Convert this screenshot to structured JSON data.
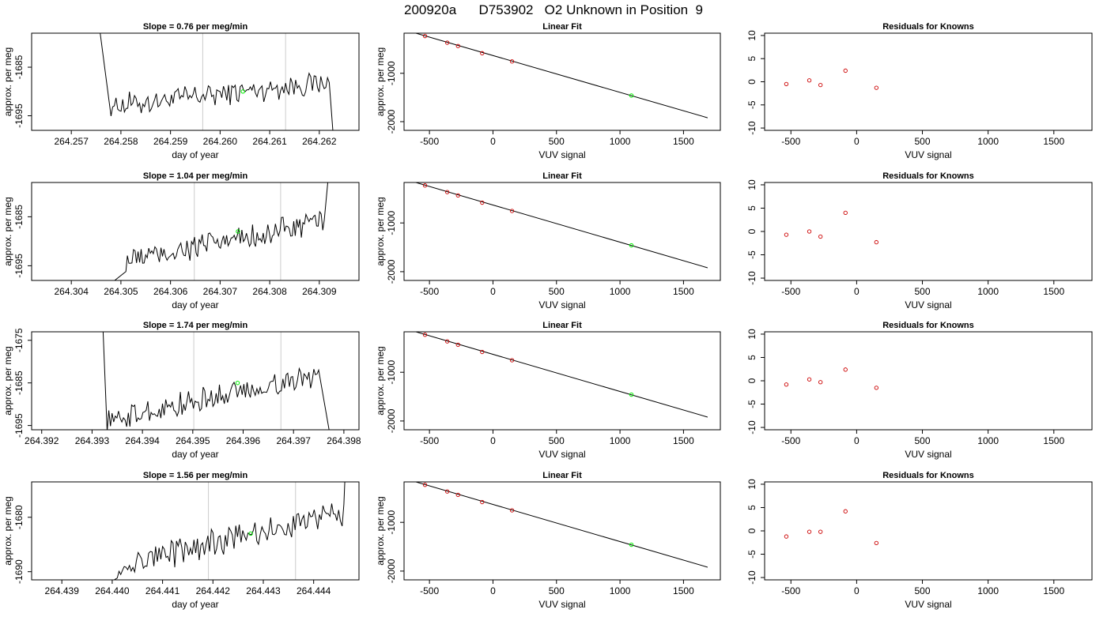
{
  "figure": {
    "title": "200920a      D753902   O2 Unknown in Position  9",
    "colors": {
      "line": "#000000",
      "known": "#cc0000",
      "unknown": "#00ee00",
      "window": "#cccccc"
    }
  },
  "chart_data": [
    {
      "id": "trace-1",
      "type": "line",
      "title": "Slope =  0.76  per meg/min",
      "xlabel": "day of year",
      "ylabel": "approx. per meg",
      "xlim": [
        264.2562,
        264.2628
      ],
      "ylim": [
        -1698,
        -1678
      ],
      "xticks": [
        264.257,
        264.258,
        264.259,
        264.26,
        264.261,
        264.262
      ],
      "xtick_labels": [
        "264.257",
        "264.258",
        "264.259",
        "264.260",
        "264.261",
        "264.262"
      ],
      "yticks": [
        -1695,
        -1685
      ],
      "ytick_labels": [
        "-1695",
        "-1685"
      ],
      "window_lines": [
        264.25965,
        264.26132
      ],
      "unknown_point": {
        "x": 264.26046,
        "y": -1690
      },
      "trace": {
        "start": 264.2578,
        "end": 264.2622,
        "base_start": -1693,
        "base_end": -1688,
        "amp": 1.5,
        "lead": [
          264.25757,
          -1677
        ],
        "tail": [
          264.26228,
          -1699
        ]
      }
    },
    {
      "id": "fit-1",
      "type": "scatter",
      "title": "Linear Fit",
      "xlabel": "VUV signal",
      "ylabel": "approx. per meg",
      "xlim": [
        -700,
        1790
      ],
      "ylim": [
        -2180,
        -170
      ],
      "xticks": [
        -500,
        0,
        500,
        1000,
        1500
      ],
      "xtick_labels": [
        "-500",
        "0",
        "500",
        "1000",
        "1500"
      ],
      "yticks": [
        -1000,
        -2000
      ],
      "ytick_labels": [
        "-1000",
        "-2000"
      ],
      "known_points": [
        {
          "x": -535,
          "y": -230
        },
        {
          "x": -360,
          "y": -367
        },
        {
          "x": -275,
          "y": -435
        },
        {
          "x": -85,
          "y": -584
        },
        {
          "x": 150,
          "y": -754
        }
      ],
      "unknown_point": {
        "x": 1090,
        "y": -1460
      },
      "fit_line": [
        [
          -620,
          -160
        ],
        [
          1690,
          -1920
        ]
      ]
    },
    {
      "id": "resid-1",
      "type": "scatter",
      "title": "Residuals for Knowns",
      "xlabel": "VUV signal",
      "ylabel": "",
      "xlim": [
        -700,
        1790
      ],
      "ylim": [
        -10.5,
        10.5
      ],
      "xticks": [
        -500,
        0,
        500,
        1000,
        1500
      ],
      "xtick_labels": [
        "-500",
        "0",
        "500",
        "1000",
        "1500"
      ],
      "yticks": [
        -10,
        -5,
        0,
        5,
        10
      ],
      "ytick_labels": [
        "-10",
        "-5",
        "0",
        "5",
        "10"
      ],
      "known_points": [
        {
          "x": -535,
          "y": -0.5
        },
        {
          "x": -360,
          "y": 0.3
        },
        {
          "x": -275,
          "y": -0.7
        },
        {
          "x": -85,
          "y": 2.4
        },
        {
          "x": 150,
          "y": -1.3
        }
      ]
    },
    {
      "id": "trace-2",
      "type": "line",
      "title": "Slope =  1.04  per meg/min",
      "xlabel": "day of year",
      "ylabel": "approx. per meg",
      "xlim": [
        264.3032,
        264.3098
      ],
      "ylim": [
        -1698,
        -1678
      ],
      "xticks": [
        264.304,
        264.305,
        264.306,
        264.307,
        264.308,
        264.309
      ],
      "xtick_labels": [
        "264.304",
        "264.305",
        "264.306",
        "264.307",
        "264.308",
        "264.309"
      ],
      "yticks": [
        -1695,
        -1685
      ],
      "ytick_labels": [
        "-1695",
        "-1685"
      ],
      "window_lines": [
        264.30648,
        264.30822
      ],
      "unknown_point": {
        "x": 264.30736,
        "y": -1688
      },
      "trace": {
        "start": 264.3051,
        "end": 264.3091,
        "base_start": -1694,
        "base_end": -1686,
        "amp": 1.6,
        "lead": [
          264.30475,
          -1699
        ],
        "tail": [
          264.30918,
          -1677
        ]
      }
    },
    {
      "id": "fit-2",
      "type": "scatter",
      "title": "Linear Fit",
      "xlabel": "VUV signal",
      "ylabel": "approx. per meg",
      "xlim": [
        -700,
        1790
      ],
      "ylim": [
        -2180,
        -170
      ],
      "xticks": [
        -500,
        0,
        500,
        1000,
        1500
      ],
      "xtick_labels": [
        "-500",
        "0",
        "500",
        "1000",
        "1500"
      ],
      "yticks": [
        -1000,
        -2000
      ],
      "ytick_labels": [
        "-1000",
        "-2000"
      ],
      "known_points": [
        {
          "x": -535,
          "y": -230
        },
        {
          "x": -360,
          "y": -367
        },
        {
          "x": -275,
          "y": -435
        },
        {
          "x": -85,
          "y": -584
        },
        {
          "x": 150,
          "y": -754
        }
      ],
      "unknown_point": {
        "x": 1090,
        "y": -1460
      },
      "fit_line": [
        [
          -620,
          -160
        ],
        [
          1690,
          -1920
        ]
      ]
    },
    {
      "id": "resid-2",
      "type": "scatter",
      "title": "Residuals for Knowns",
      "xlabel": "VUV signal",
      "ylabel": "",
      "xlim": [
        -700,
        1790
      ],
      "ylim": [
        -10.5,
        10.5
      ],
      "xticks": [
        -500,
        0,
        500,
        1000,
        1500
      ],
      "xtick_labels": [
        "-500",
        "0",
        "500",
        "1000",
        "1500"
      ],
      "yticks": [
        -10,
        -5,
        0,
        5,
        10
      ],
      "ytick_labels": [
        "-10",
        "-5",
        "0",
        "5",
        "10"
      ],
      "known_points": [
        {
          "x": -535,
          "y": -0.7
        },
        {
          "x": -360,
          "y": 0.0
        },
        {
          "x": -275,
          "y": -1.1
        },
        {
          "x": -85,
          "y": 4.0
        },
        {
          "x": 150,
          "y": -2.3
        }
      ]
    },
    {
      "id": "trace-3",
      "type": "line",
      "title": "Slope =  1.74  per meg/min",
      "xlabel": "day of year",
      "ylabel": "approx. per meg",
      "xlim": [
        264.3918,
        264.3983
      ],
      "ylim": [
        -1696,
        -1673
      ],
      "xticks": [
        264.392,
        264.393,
        264.394,
        264.395,
        264.396,
        264.397,
        264.398
      ],
      "xtick_labels": [
        "264.392",
        "264.393",
        "264.394",
        "264.395",
        "264.396",
        "264.397",
        "264.398"
      ],
      "yticks": [
        -1695,
        -1685,
        -1675
      ],
      "ytick_labels": [
        "-1695",
        "-1685",
        "-1675"
      ],
      "window_lines": [
        264.39502,
        264.39675
      ],
      "unknown_point": {
        "x": 264.39589,
        "y": -1685
      },
      "trace": {
        "start": 264.3933,
        "end": 264.3975,
        "base_start": -1694,
        "base_end": -1683,
        "amp": 1.8,
        "lead": [
          264.39322,
          -1673
        ],
        "tail": [
          264.39772,
          -1697
        ]
      }
    },
    {
      "id": "fit-3",
      "type": "scatter",
      "title": "Linear Fit",
      "xlabel": "VUV signal",
      "ylabel": "approx. per meg",
      "xlim": [
        -700,
        1790
      ],
      "ylim": [
        -2180,
        -170
      ],
      "xticks": [
        -500,
        0,
        500,
        1000,
        1500
      ],
      "xtick_labels": [
        "-500",
        "0",
        "500",
        "1000",
        "1500"
      ],
      "yticks": [
        -1000,
        -2000
      ],
      "ytick_labels": [
        "-1000",
        "-2000"
      ],
      "known_points": [
        {
          "x": -535,
          "y": -230
        },
        {
          "x": -360,
          "y": -367
        },
        {
          "x": -275,
          "y": -435
        },
        {
          "x": -85,
          "y": -584
        },
        {
          "x": 150,
          "y": -754
        }
      ],
      "unknown_point": {
        "x": 1090,
        "y": -1460
      },
      "fit_line": [
        [
          -620,
          -160
        ],
        [
          1690,
          -1920
        ]
      ]
    },
    {
      "id": "resid-3",
      "type": "scatter",
      "title": "Residuals for Knowns",
      "xlabel": "VUV signal",
      "ylabel": "",
      "xlim": [
        -700,
        1790
      ],
      "ylim": [
        -10.5,
        10.5
      ],
      "xticks": [
        -500,
        0,
        500,
        1000,
        1500
      ],
      "xtick_labels": [
        "-500",
        "0",
        "500",
        "1000",
        "1500"
      ],
      "yticks": [
        -10,
        -5,
        0,
        5,
        10
      ],
      "ytick_labels": [
        "-10",
        "-5",
        "0",
        "5",
        "10"
      ],
      "known_points": [
        {
          "x": -535,
          "y": -0.8
        },
        {
          "x": -360,
          "y": 0.3
        },
        {
          "x": -275,
          "y": -0.3
        },
        {
          "x": -85,
          "y": 2.4
        },
        {
          "x": 150,
          "y": -1.5
        }
      ]
    },
    {
      "id": "trace-4",
      "type": "line",
      "title": "Slope =  1.56  per meg/min",
      "xlabel": "day of year",
      "ylabel": "approx. per meg",
      "xlim": [
        264.4384,
        264.4449
      ],
      "ylim": [
        -1691.5,
        -1673.5
      ],
      "xticks": [
        264.439,
        264.44,
        264.441,
        264.442,
        264.443,
        264.444
      ],
      "xtick_labels": [
        "264.439",
        "264.440",
        "264.441",
        "264.442",
        "264.443",
        "264.444"
      ],
      "yticks": [
        -1690,
        -1680
      ],
      "ytick_labels": [
        "-1690",
        "-1680"
      ],
      "window_lines": [
        264.44191,
        264.44364
      ],
      "unknown_point": {
        "x": 264.44275,
        "y": -1683
      },
      "trace": {
        "start": 264.4401,
        "end": 264.4446,
        "base_start": -1689,
        "base_end": -1679,
        "amp": 1.6,
        "lead": [
          264.43995,
          -1692
        ],
        "tail": [
          264.44462,
          -1673
        ]
      }
    },
    {
      "id": "fit-4",
      "type": "scatter",
      "title": "Linear Fit",
      "xlabel": "VUV signal",
      "ylabel": "approx. per meg",
      "xlim": [
        -700,
        1790
      ],
      "ylim": [
        -2180,
        -170
      ],
      "xticks": [
        -500,
        0,
        500,
        1000,
        1500
      ],
      "xtick_labels": [
        "-500",
        "0",
        "500",
        "1000",
        "1500"
      ],
      "yticks": [
        -1000,
        -2000
      ],
      "ytick_labels": [
        "-1000",
        "-2000"
      ],
      "known_points": [
        {
          "x": -535,
          "y": -230
        },
        {
          "x": -360,
          "y": -367
        },
        {
          "x": -275,
          "y": -435
        },
        {
          "x": -85,
          "y": -584
        },
        {
          "x": 150,
          "y": -754
        }
      ],
      "unknown_point": {
        "x": 1090,
        "y": -1460
      },
      "fit_line": [
        [
          -620,
          -160
        ],
        [
          1690,
          -1920
        ]
      ]
    },
    {
      "id": "resid-4",
      "type": "scatter",
      "title": "Residuals for Knowns",
      "xlabel": "VUV signal",
      "ylabel": "",
      "xlim": [
        -700,
        1790
      ],
      "ylim": [
        -10.5,
        10.5
      ],
      "xticks": [
        -500,
        0,
        500,
        1000,
        1500
      ],
      "xtick_labels": [
        "-500",
        "0",
        "500",
        "1000",
        "1500"
      ],
      "yticks": [
        -10,
        -5,
        0,
        5,
        10
      ],
      "ytick_labels": [
        "-10",
        "-5",
        "0",
        "5",
        "10"
      ],
      "known_points": [
        {
          "x": -535,
          "y": -1.2
        },
        {
          "x": -360,
          "y": -0.2
        },
        {
          "x": -275,
          "y": -0.2
        },
        {
          "x": -85,
          "y": 4.2
        },
        {
          "x": 150,
          "y": -2.6
        }
      ]
    }
  ]
}
